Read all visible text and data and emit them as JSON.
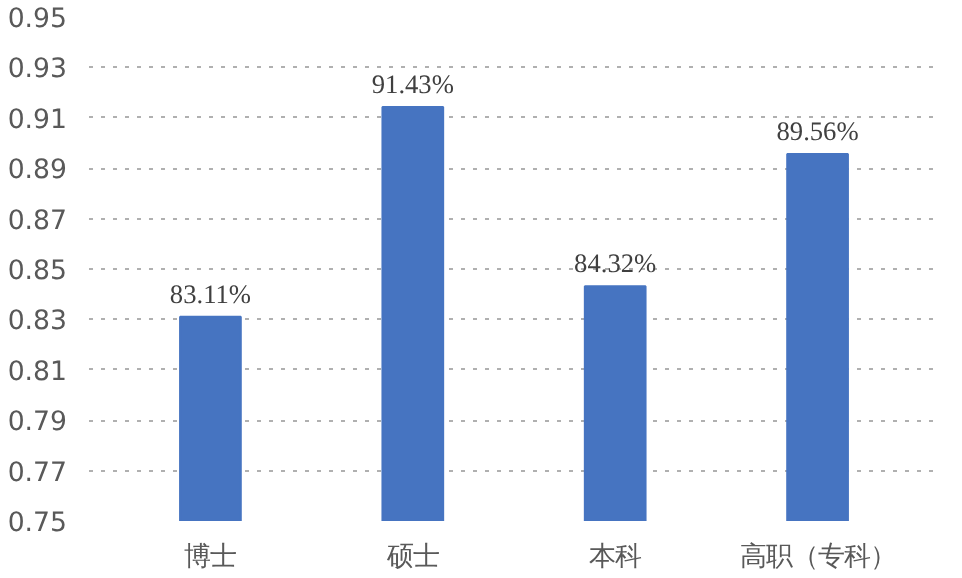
{
  "chart_data": {
    "type": "bar",
    "categories": [
      "博士",
      "硕士",
      "本科",
      "高职（专科）"
    ],
    "values": [
      0.8311,
      0.9143,
      0.8432,
      0.8956
    ],
    "value_labels": [
      "83.11%",
      "91.43%",
      "84.32%",
      "89.56%"
    ],
    "color": "#4674c1",
    "ylim": [
      0.75,
      0.95
    ],
    "yticks": [
      0.75,
      0.77,
      0.79,
      0.81,
      0.83,
      0.85,
      0.87,
      0.89,
      0.91,
      0.93,
      0.95
    ],
    "grid": "y",
    "line_style": "dotted"
  }
}
